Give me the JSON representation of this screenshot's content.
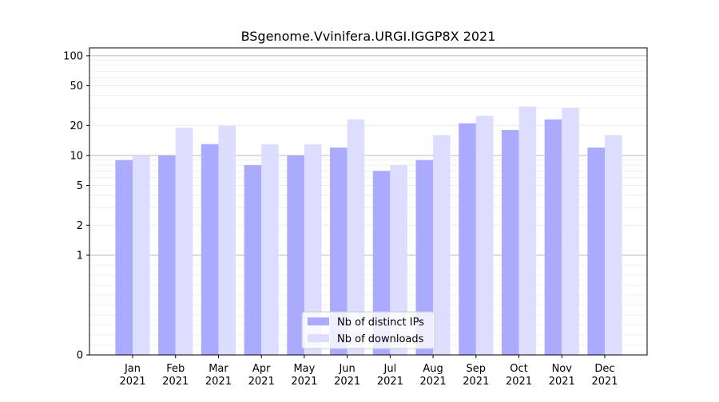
{
  "chart_data": {
    "type": "bar",
    "title": "BSgenome.Vvinifera.URGI.IGGP8X 2021",
    "xlabel": "",
    "ylabel": "",
    "yscale": "symlog",
    "ylim": [
      0,
      120
    ],
    "yticks": [
      0,
      1,
      2,
      5,
      10,
      20,
      50,
      100
    ],
    "ytick_labels": [
      "0",
      "1",
      "2",
      "5",
      "10",
      "20",
      "50",
      "100"
    ],
    "grid": true,
    "legend_position": "bottom-center",
    "categories": [
      "Jan\n2021",
      "Feb\n2021",
      "Mar\n2021",
      "Apr\n2021",
      "May\n2021",
      "Jun\n2021",
      "Jul\n2021",
      "Aug\n2021",
      "Sep\n2021",
      "Oct\n2021",
      "Nov\n2021",
      "Dec\n2021"
    ],
    "category_labels": [
      [
        "Jan",
        "2021"
      ],
      [
        "Feb",
        "2021"
      ],
      [
        "Mar",
        "2021"
      ],
      [
        "Apr",
        "2021"
      ],
      [
        "May",
        "2021"
      ],
      [
        "Jun",
        "2021"
      ],
      [
        "Jul",
        "2021"
      ],
      [
        "Aug",
        "2021"
      ],
      [
        "Sep",
        "2021"
      ],
      [
        "Oct",
        "2021"
      ],
      [
        "Nov",
        "2021"
      ],
      [
        "Dec",
        "2021"
      ]
    ],
    "series": [
      {
        "name": "Nb of distinct IPs",
        "color": "#aaaaff",
        "values": [
          9,
          10,
          13,
          8,
          10,
          12,
          7,
          9,
          21,
          18,
          23,
          12
        ]
      },
      {
        "name": "Nb of downloads",
        "color": "#ddddff",
        "values": [
          10,
          19,
          20,
          13,
          13,
          23,
          8,
          16,
          25,
          31,
          30,
          16
        ]
      }
    ]
  }
}
